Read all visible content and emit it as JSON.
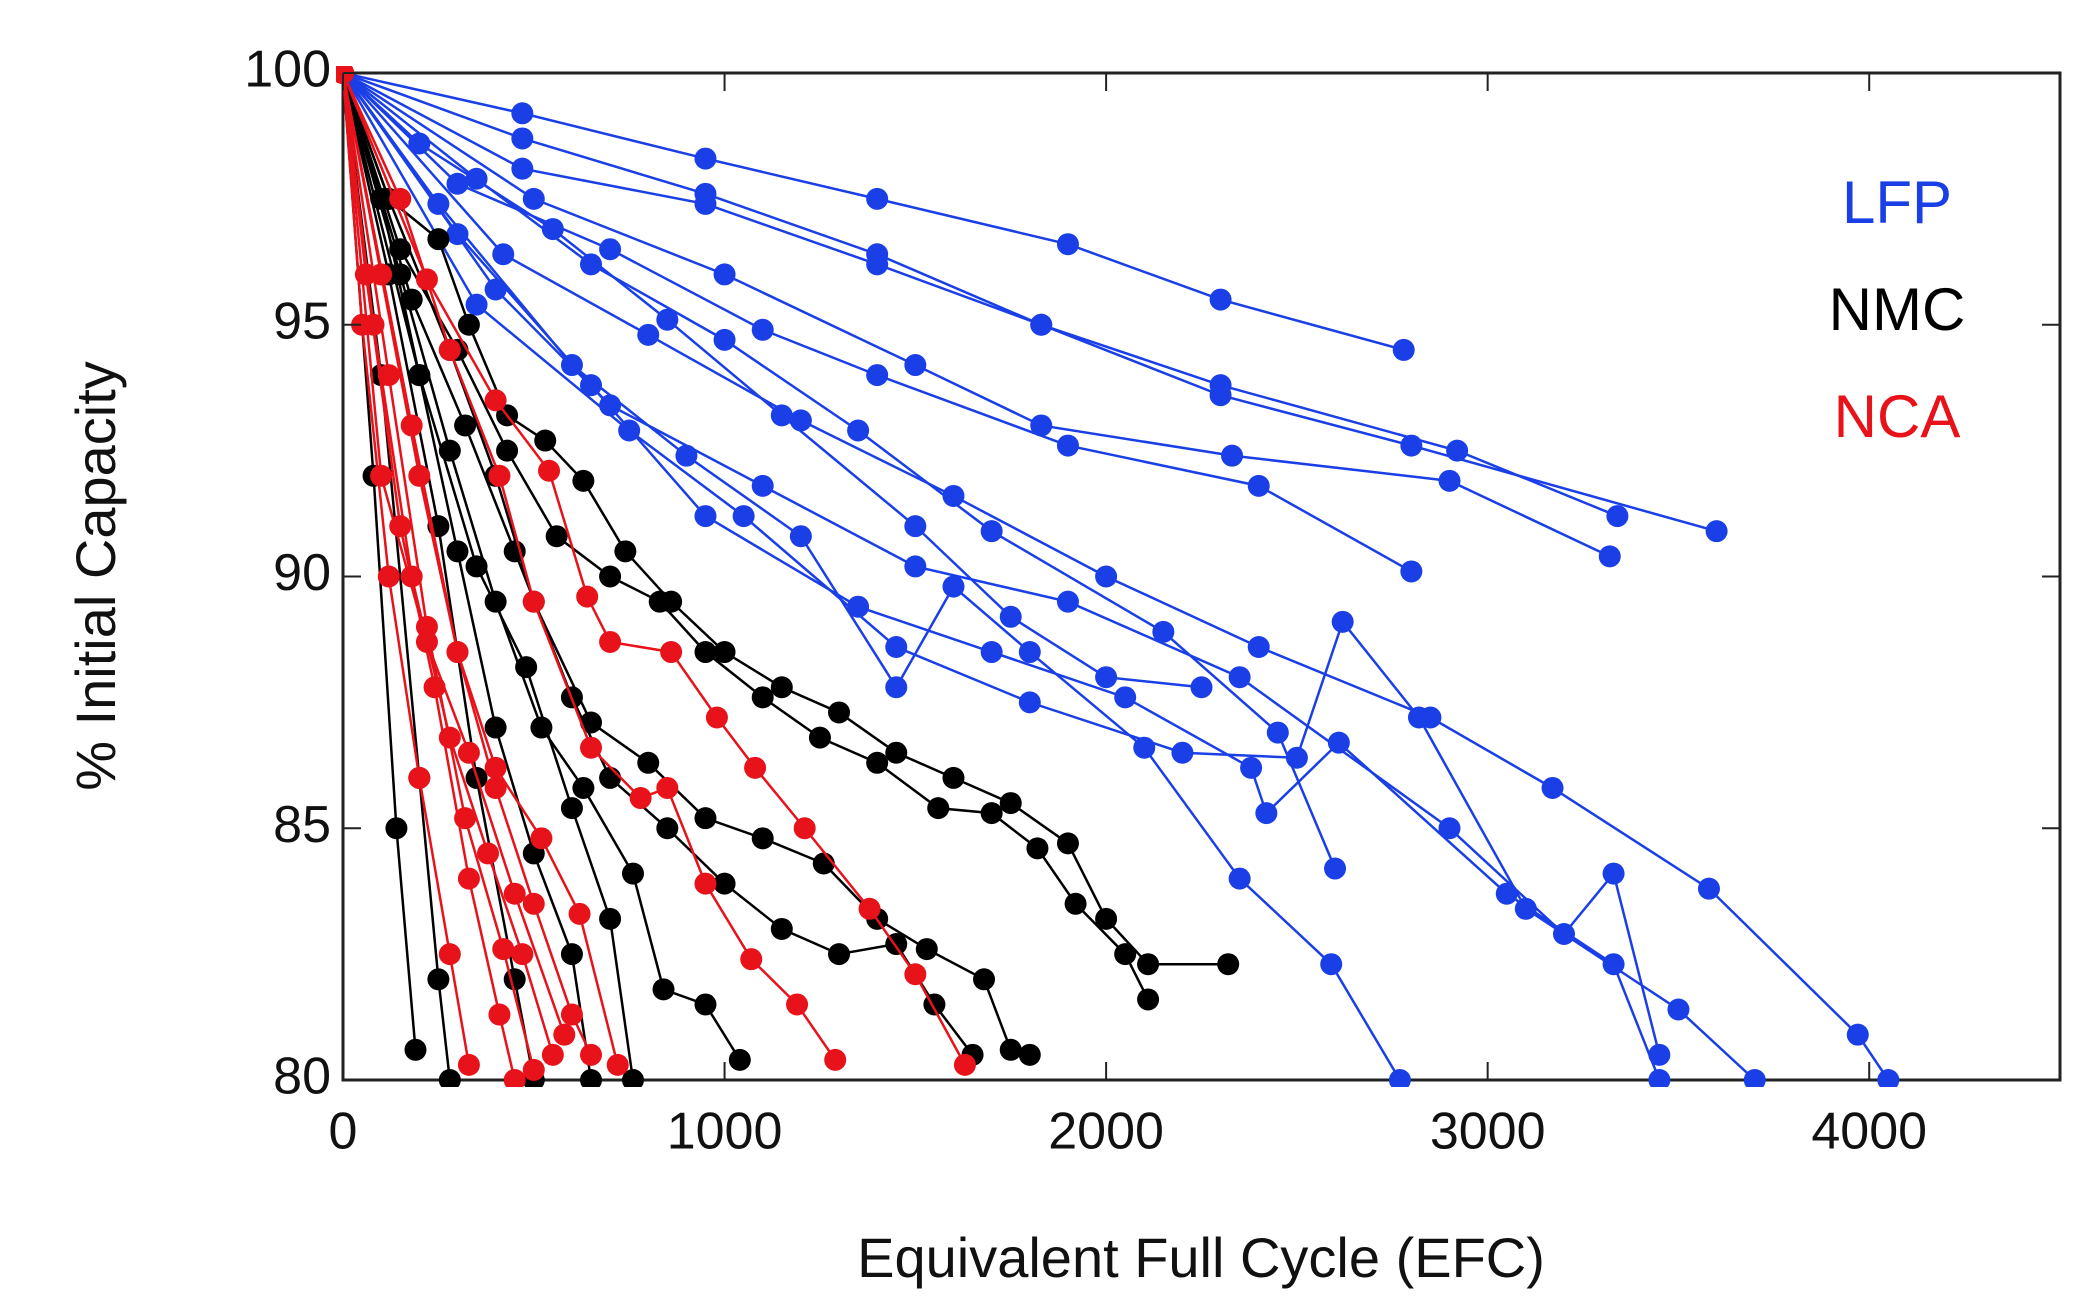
{
  "chart_data": {
    "type": "line",
    "x_label": "Equivalent Full Cycle (EFC)",
    "y_label": "% Initial Capacity",
    "xlim": [
      0,
      4500
    ],
    "ylim": [
      80,
      100
    ],
    "xticks": [
      0,
      1000,
      2000,
      3000,
      4000
    ],
    "yticks": [
      80,
      85,
      90,
      95,
      100
    ],
    "markers": true,
    "series": [
      {
        "name": "LFP",
        "color": "#1a3fe6",
        "lines": [
          {
            "x": [
              0,
              470,
              950,
              1400,
              1900,
              2300,
              2780
            ],
            "values": [
              100,
              99.2,
              98.3,
              97.5,
              96.6,
              95.5,
              94.5
            ]
          },
          {
            "x": [
              0,
              470,
              950,
              1400,
              1830,
              2300,
              2800,
              3600
            ],
            "values": [
              100,
              98.7,
              97.6,
              96.4,
              95,
              93.6,
              92.6,
              90.9
            ]
          },
          {
            "x": [
              0,
              470,
              950,
              1400,
              1830,
              2300,
              2920,
              3340
            ],
            "values": [
              100,
              98.1,
              97.4,
              96.2,
              95,
              93.8,
              92.5,
              91.2
            ]
          },
          {
            "x": [
              0,
              500,
              1000,
              1500,
              1830,
              2330,
              2900,
              3320
            ],
            "values": [
              100,
              97.5,
              96,
              94.2,
              93,
              92.4,
              91.9,
              90.4
            ]
          },
          {
            "x": [
              0,
              300,
              700,
              1100,
              1400,
              1900,
              2400,
              2800
            ],
            "values": [
              100,
              97.8,
              96.5,
              94.9,
              94,
              92.6,
              91.8,
              90.1
            ]
          },
          {
            "x": [
              0,
              420,
              800,
              1200,
              1600,
              2000,
              2400,
              2850,
              3170,
              3580,
              3970,
              4050
            ],
            "values": [
              100,
              96.4,
              94.8,
              93.1,
              91.6,
              90,
              88.6,
              87.2,
              85.8,
              83.8,
              80.9,
              80
            ]
          },
          {
            "x": [
              0,
              400,
              700,
              1100,
              1500,
              1900,
              2350,
              2900,
              3200,
              3330,
              3450
            ],
            "values": [
              100,
              95.7,
              93.4,
              91.8,
              90.2,
              89.5,
              88,
              85,
              82.9,
              84.1,
              80.5
            ]
          },
          {
            "x": [
              0,
              350,
              750,
              1050,
              1450,
              1800,
              2200,
              2500,
              2620,
              2820,
              3100,
              3500,
              3700
            ],
            "values": [
              100,
              95.4,
              92.9,
              91.2,
              88.6,
              87.5,
              86.5,
              86.4,
              89.1,
              87.2,
              83.4,
              81.4,
              80
            ]
          },
          {
            "x": [
              0,
              300,
              650,
              950,
              1350,
              1700,
              2050,
              2380,
              2420,
              2610,
              3050,
              3330,
              3450
            ],
            "values": [
              100,
              96.8,
              93.8,
              91.2,
              89.4,
              88.5,
              87.6,
              86.2,
              85.3,
              86.7,
              83.7,
              82.3,
              80
            ]
          },
          {
            "x": [
              0,
              250,
              600,
              900,
              1200,
              1450,
              1600,
              1800,
              2100,
              2350,
              2590,
              2770
            ],
            "values": [
              100,
              97.4,
              94.2,
              92.4,
              90.8,
              87.8,
              89.8,
              88.5,
              86.6,
              84,
              82.3,
              80
            ]
          },
          {
            "x": [
              0,
              200,
              550,
              850,
              1150,
              1500,
              1750,
              2000,
              2250
            ],
            "values": [
              100,
              98.6,
              96.9,
              95.1,
              93.2,
              91,
              89.2,
              88,
              87.8
            ]
          },
          {
            "x": [
              0,
              350,
              650,
              1000,
              1350,
              1700,
              2150,
              2450,
              2600
            ],
            "values": [
              100,
              97.9,
              96.2,
              94.7,
              92.9,
              90.9,
              88.9,
              86.9,
              84.2
            ]
          }
        ]
      },
      {
        "name": "NMC",
        "color": "#000000",
        "lines": [
          {
            "x": [
              0,
              120,
              250,
              330,
              430,
              530,
              630,
              740,
              860,
              1000,
              1150,
              1300,
              1450,
              1600,
              1750,
              1900,
              2000,
              2110,
              2320
            ],
            "values": [
              100,
              97.5,
              96.7,
              95,
              93.2,
              92.7,
              91.9,
              90.5,
              89.5,
              88.5,
              87.8,
              87.3,
              86.5,
              86,
              85.5,
              84.7,
              83.2,
              82.3,
              82.3
            ]
          },
          {
            "x": [
              0,
              150,
              300,
              430,
              560,
              700,
              830,
              950,
              1100,
              1250,
              1400,
              1560,
              1700,
              1820,
              1920,
              2050,
              2110
            ],
            "values": [
              100,
              96.5,
              94.5,
              92.5,
              90.8,
              90,
              89.5,
              88.5,
              87.6,
              86.8,
              86.3,
              85.4,
              85.3,
              84.6,
              83.5,
              82.5,
              81.6
            ]
          },
          {
            "x": [
              0,
              120,
              280,
              400,
              500,
              650,
              800,
              950,
              1100,
              1260,
              1400,
              1530,
              1680,
              1750,
              1800
            ],
            "values": [
              100,
              97.5,
              94.5,
              92,
              89.5,
              87.1,
              86.3,
              85.2,
              84.8,
              84.3,
              83.2,
              82.6,
              82,
              80.6,
              80.5
            ]
          },
          {
            "x": [
              0,
              180,
              320,
              450,
              600,
              700,
              850,
              1000,
              1150,
              1300,
              1450,
              1550,
              1650
            ],
            "values": [
              100,
              95.5,
              93,
              90.5,
              87.6,
              86,
              85,
              83.9,
              83,
              82.5,
              82.7,
              81.5,
              80.5
            ]
          },
          {
            "x": [
              0,
              150,
              280,
              400,
              520,
              630,
              760,
              840,
              950,
              1040
            ],
            "values": [
              100,
              96,
              92.5,
              89.5,
              87,
              85.8,
              84.1,
              81.8,
              81.5,
              80.4
            ]
          },
          {
            "x": [
              0,
              100,
              200,
              300,
              400,
              500,
              600,
              650
            ],
            "values": [
              100,
              97.5,
              94,
              90.5,
              87,
              84.5,
              82.5,
              80
            ]
          },
          {
            "x": [
              0,
              100,
              200,
              250,
              280
            ],
            "values": [
              100,
              94,
              86,
              82,
              80
            ]
          },
          {
            "x": [
              0,
              120,
              250,
              350,
              450,
              500
            ],
            "values": [
              100,
              96,
              91,
              86,
              82,
              80
            ]
          },
          {
            "x": [
              0,
              80,
              140,
              190
            ],
            "values": [
              100,
              92,
              85,
              80.6
            ]
          },
          {
            "x": [
              0,
              200,
              350,
              480,
              600,
              700,
              760
            ],
            "values": [
              100,
              94,
              90.2,
              88.2,
              85.4,
              83.2,
              80
            ]
          }
        ]
      },
      {
        "name": "NCA",
        "color": "#e8121a",
        "lines": [
          {
            "x": [
              0,
              220,
              400,
              540,
              640,
              700,
              860,
              980,
              1080,
              1210,
              1380,
              1500,
              1630
            ],
            "values": [
              100,
              95.9,
              93.5,
              92.1,
              89.6,
              88.7,
              88.5,
              87.2,
              86.2,
              85,
              83.4,
              82.1,
              80.3
            ]
          },
          {
            "x": [
              0,
              150,
              280,
              410,
              500,
              650,
              780,
              850,
              950,
              1070,
              1190,
              1290
            ],
            "values": [
              100,
              97.5,
              94.5,
              92,
              89.5,
              86.6,
              85.6,
              85.8,
              83.9,
              82.4,
              81.5,
              80.4
            ]
          },
          {
            "x": [
              0,
              100,
              200,
              300,
              400,
              520,
              620,
              720
            ],
            "values": [
              100,
              96,
              92,
              88.5,
              86.2,
              84.8,
              83.3,
              80.3
            ]
          },
          {
            "x": [
              0,
              80,
              180,
              280,
              380,
              470,
              550
            ],
            "values": [
              100,
              95,
              90,
              86.8,
              84.5,
              82.5,
              80.5
            ]
          },
          {
            "x": [
              0,
              60,
              150,
              240,
              330,
              410,
              450
            ],
            "values": [
              100,
              96,
              91,
              87.8,
              84,
              81.3,
              80
            ]
          },
          {
            "x": [
              0,
              120,
              220,
              320,
              420,
              500
            ],
            "values": [
              100,
              94,
              89,
              85.2,
              82.6,
              80.2
            ]
          },
          {
            "x": [
              0,
              50,
              120,
              200,
              280,
              330
            ],
            "values": [
              100,
              95,
              90,
              86,
              82.5,
              80.3
            ]
          },
          {
            "x": [
              0,
              180,
              300,
              400,
              500,
              600,
              650
            ],
            "values": [
              100,
              93,
              88.5,
              85.8,
              83.5,
              81.3,
              80.5
            ]
          },
          {
            "x": [
              0,
              100,
              220,
              330,
              450,
              580
            ],
            "values": [
              100,
              92,
              88.7,
              86.5,
              83.7,
              80.9
            ]
          }
        ]
      }
    ]
  }
}
